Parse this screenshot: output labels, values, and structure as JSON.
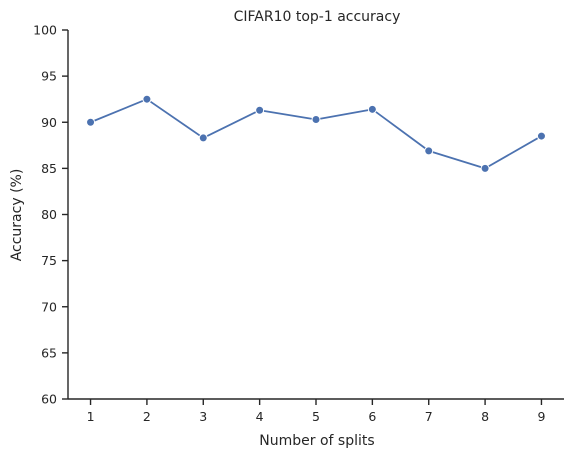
{
  "chart_data": {
    "type": "line",
    "title": "CIFAR10 top-1 accuracy",
    "xlabel": "Number of splits",
    "ylabel": "Accuracy (%)",
    "x": [
      1,
      2,
      3,
      4,
      5,
      6,
      7,
      8,
      9
    ],
    "xticks": [
      "1",
      "2",
      "3",
      "4",
      "5",
      "6",
      "7",
      "8",
      "9"
    ],
    "xlim": [
      0.6,
      9.4
    ],
    "ylim": [
      60,
      100
    ],
    "yticks": [
      "60",
      "65",
      "70",
      "75",
      "80",
      "85",
      "90",
      "95",
      "100"
    ],
    "grid": false,
    "series": [
      {
        "values": [
          90.0,
          92.5,
          88.3,
          91.3,
          90.3,
          91.4,
          86.9,
          85.0,
          88.5
        ],
        "color": "#4c72b0",
        "marker": "circle"
      }
    ]
  }
}
